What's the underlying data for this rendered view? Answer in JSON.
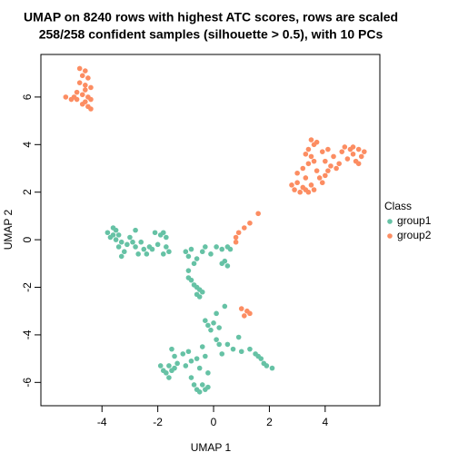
{
  "chart_data": {
    "type": "scatter",
    "title": "UMAP on 8240 rows with highest ATC scores, rows are scaled",
    "subtitle": "258/258 confident samples (silhouette > 0.5), with 10 PCs",
    "x_label": "UMAP 1",
    "y_label": "UMAP 2",
    "legend_title": "Class",
    "legend_position": "right",
    "xlim": [
      -6.19,
      5.96
    ],
    "ylim": [
      -6.98,
      7.79
    ],
    "xticks": [
      -4,
      -2,
      0,
      2,
      4
    ],
    "yticks": [
      -6,
      -4,
      -2,
      0,
      2,
      4,
      6
    ],
    "series": [
      {
        "name": "group1",
        "color": "#66C2A5",
        "x": [
          -3.8,
          -3.6,
          -3.5,
          -3.4,
          -3.7,
          -3.5,
          -3.3,
          -3.4,
          -3.2,
          -3.3,
          -3.1,
          -3.0,
          -2.9,
          -2.8,
          -2.7,
          -2.5,
          -2.6,
          -2.8,
          -2.4,
          -2.2,
          -2.0,
          -1.9,
          -1.8,
          -2.1,
          -1.7,
          -1.6,
          -1.8,
          -1.7,
          -2.3,
          -3.6,
          -1.0,
          -0.8,
          -0.9,
          -0.7,
          -0.6,
          -0.4,
          -0.3,
          -0.1,
          0.1,
          0.3,
          0.5,
          0.6,
          0.4,
          0.5,
          0.3,
          -0.9,
          -0.9,
          -0.8,
          -0.7,
          -0.6,
          -0.5,
          -0.6,
          -0.4,
          -0.5,
          0.4,
          0.1,
          -0.3,
          -0.2,
          0.0,
          -0.1,
          0.2,
          0.1,
          0.2,
          0.3,
          0.5,
          0.7,
          0.9,
          1.0,
          1.3,
          1.5,
          1.7,
          1.8,
          1.9,
          2.1,
          1.6,
          -1.5,
          -1.4,
          -1.1,
          -0.9,
          -1.3,
          -1.0,
          -0.8,
          -0.6,
          -0.3,
          -0.5,
          -1.9,
          -1.8,
          -1.7,
          -1.5,
          -1.6,
          -1.4,
          -1.6,
          -0.7,
          -0.6,
          -0.5,
          -0.3,
          -0.4,
          -0.2,
          -0.8,
          -0.2,
          -0.4
        ],
        "values": [
          0.3,
          0.5,
          0.4,
          0.2,
          0.1,
          0.0,
          -0.1,
          -0.3,
          -0.5,
          -0.7,
          -0.2,
          0.1,
          -0.1,
          -0.3,
          -0.6,
          -0.4,
          -0.1,
          0.4,
          -0.6,
          -0.4,
          -0.2,
          0.2,
          0.3,
          0.3,
          -0.3,
          -0.5,
          -0.6,
          0.1,
          -0.3,
          0.2,
          -0.5,
          -0.4,
          -0.7,
          -1.0,
          -0.8,
          -0.5,
          -0.3,
          -0.6,
          -0.3,
          -0.4,
          -0.3,
          -0.4,
          -0.9,
          -1.1,
          -1.0,
          -1.3,
          -1.6,
          -1.7,
          -1.9,
          -2.0,
          -2.1,
          -2.3,
          -2.2,
          -2.4,
          -2.8,
          -3.1,
          -3.4,
          -3.6,
          -3.5,
          -3.8,
          -3.7,
          -4.2,
          -4.4,
          -4.8,
          -4.4,
          -4.6,
          -4.1,
          -4.7,
          -4.6,
          -4.8,
          -5.0,
          -5.2,
          -5.3,
          -5.4,
          -4.9,
          -4.6,
          -4.9,
          -4.8,
          -4.7,
          -5.2,
          -5.3,
          -5.1,
          -5.0,
          -4.9,
          -5.4,
          -5.3,
          -5.5,
          -5.6,
          -5.5,
          -5.8,
          -5.4,
          -5.3,
          -6.1,
          -6.3,
          -6.4,
          -6.3,
          -6.1,
          -6.2,
          -5.8,
          -5.6,
          -4.5
        ]
      },
      {
        "name": "group2",
        "color": "#FC8D62",
        "x": [
          -4.8,
          -4.6,
          -4.7,
          -4.5,
          -4.8,
          -4.6,
          -4.4,
          -4.9,
          -4.7,
          -4.5,
          -5.3,
          -5.1,
          -4.9,
          -4.6,
          -4.4,
          -4.7,
          -4.5,
          -4.4,
          -5.0,
          -4.6,
          2.8,
          2.9,
          3.0,
          3.1,
          3.2,
          3.3,
          3.4,
          3.5,
          3.6,
          3.3,
          3.0,
          3.2,
          3.4,
          3.5,
          3.4,
          3.6,
          3.5,
          3.7,
          3.3,
          3.6,
          3.7,
          3.8,
          3.9,
          4.0,
          4.1,
          4.2,
          4.0,
          3.9,
          4.1,
          4.3,
          4.6,
          4.7,
          4.9,
          5.0,
          5.2,
          5.4,
          5.3,
          5.1,
          5.2,
          4.8,
          5.0,
          4.5,
          4.4,
          1.6,
          1.3,
          1.1,
          0.9,
          0.8,
          0.8,
          1.0,
          1.2,
          1.3,
          1.1
        ],
        "values": [
          7.2,
          7.1,
          6.9,
          6.8,
          6.6,
          6.5,
          6.4,
          6.2,
          6.1,
          6.0,
          6.0,
          5.9,
          5.9,
          5.8,
          5.9,
          5.7,
          5.6,
          5.5,
          6.0,
          6.3,
          2.3,
          2.1,
          2.4,
          2.0,
          2.2,
          2.1,
          2.0,
          2.3,
          2.1,
          2.6,
          2.8,
          3.0,
          3.2,
          3.5,
          3.8,
          4.0,
          4.2,
          4.1,
          3.6,
          3.3,
          2.9,
          2.6,
          2.4,
          2.7,
          2.9,
          3.1,
          3.3,
          3.7,
          3.8,
          3.5,
          3.7,
          3.9,
          3.8,
          3.6,
          3.8,
          3.7,
          3.5,
          3.3,
          3.2,
          3.4,
          3.9,
          3.2,
          3.0,
          1.1,
          0.7,
          0.5,
          0.3,
          0.1,
          -0.1,
          -2.9,
          -3.0,
          -3.1,
          -3.2
        ]
      }
    ]
  }
}
